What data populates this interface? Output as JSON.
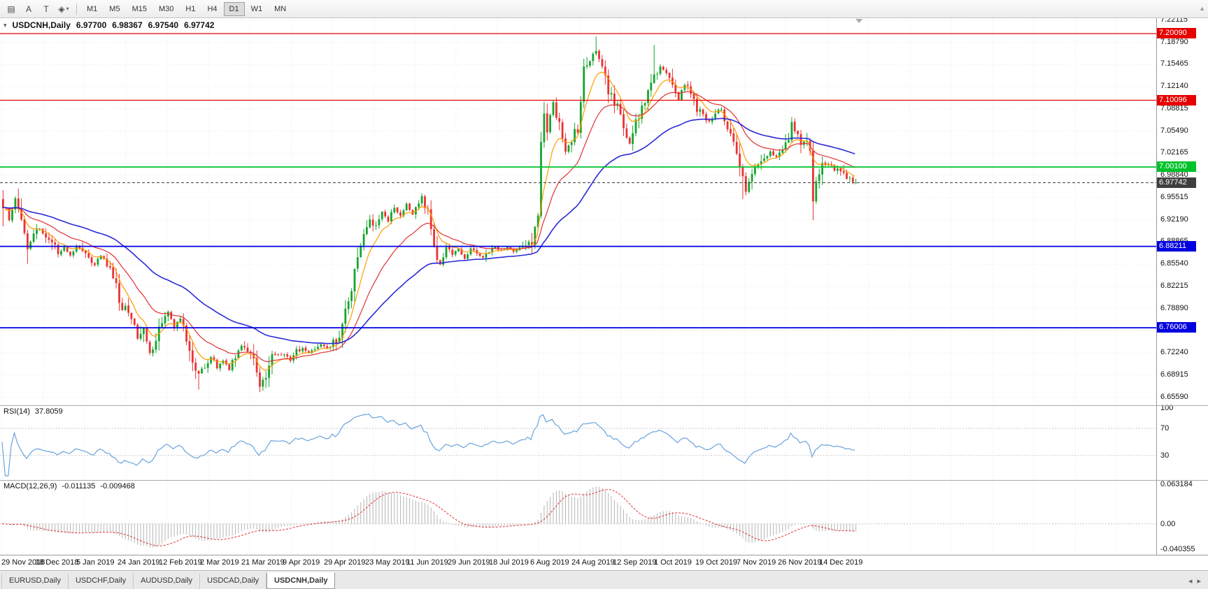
{
  "toolbar": {
    "icons": [
      {
        "name": "chart-list-icon",
        "glyph": "▤"
      },
      {
        "name": "cursor-tool-icon",
        "glyph": "A"
      },
      {
        "name": "text-tool-icon",
        "glyph": "T"
      },
      {
        "name": "shapes-tool-icon",
        "glyph": "◈"
      }
    ],
    "caret": "▾",
    "timeframes": [
      "M1",
      "M5",
      "M15",
      "M30",
      "H1",
      "H4",
      "D1",
      "W1",
      "MN"
    ],
    "active_timeframe": "D1",
    "scroll_marker": "▲"
  },
  "chart_header": {
    "dropdown_glyph": "▾",
    "symbol": "USDCNH,Daily",
    "open": "6.97700",
    "high": "6.98367",
    "low": "6.97540",
    "close": "6.97742"
  },
  "tabs": {
    "items": [
      "EURUSD,Daily",
      "USDCHF,Daily",
      "AUDUSD,Daily",
      "USDCAD,Daily",
      "USDCNH,Daily"
    ],
    "active_index": 4,
    "scroll_left": "◂",
    "scroll_right": "▸"
  },
  "chart_data": {
    "type": "candlestick",
    "symbol": "USDCNH",
    "timeframe": "Daily",
    "bars": 280,
    "price_range": [
      6.644,
      7.224
    ],
    "ohlc_current": {
      "open": 6.977,
      "high": 6.98367,
      "low": 6.9754,
      "close": 6.97742
    },
    "colors": {
      "up": "#16a52e",
      "down": "#ea3333",
      "grid": "#e7e7e7"
    },
    "price_axis_labels": [
      {
        "t": "7.22115",
        "v": 7.22115
      },
      {
        "t": "7.18790",
        "v": 7.1879
      },
      {
        "t": "7.15465",
        "v": 7.15465
      },
      {
        "t": "7.12140",
        "v": 7.1214
      },
      {
        "t": "7.08815",
        "v": 7.08815
      },
      {
        "t": "7.05490",
        "v": 7.0549
      },
      {
        "t": "7.02165",
        "v": 7.02165
      },
      {
        "t": "6.98840",
        "v": 6.9884
      },
      {
        "t": "6.95515",
        "v": 6.95515
      },
      {
        "t": "6.92190",
        "v": 6.9219
      },
      {
        "t": "6.88865",
        "v": 6.88865
      },
      {
        "t": "6.85540",
        "v": 6.8554
      },
      {
        "t": "6.82215",
        "v": 6.82215
      },
      {
        "t": "6.78890",
        "v": 6.7889
      },
      {
        "t": "6.75565",
        "v": 6.75565
      },
      {
        "t": "6.72240",
        "v": 6.7224
      },
      {
        "t": "6.68915",
        "v": 6.68915
      },
      {
        "t": "6.65590",
        "v": 6.6559
      }
    ],
    "date_labels": [
      "29 Nov 2018",
      "18 Dec 2018",
      "5 Jan 2019",
      "24 Jan 2019",
      "12 Feb 2019",
      "2 Mar 2019",
      "21 Mar 2019",
      "9 Apr 2019",
      "29 Apr 2019",
      "23 May 2019",
      "11 Jun 2019",
      "29 Jun 2019",
      "18 Jul 2019",
      "6 Aug 2019",
      "24 Aug 2019",
      "12 Sep 2019",
      "1 Oct 2019",
      "19 Oct 2019",
      "7 Nov 2019",
      "26 Nov 2019",
      "14 Dec 2019"
    ],
    "levels": [
      {
        "name": "resistance-line-1",
        "label": "7.20090",
        "value": 7.2009,
        "color": "#e60000",
        "width": 1.3,
        "dash": false
      },
      {
        "name": "resistance-line-2",
        "label": "7.10096",
        "value": 7.10096,
        "color": "#e60000",
        "width": 1.3,
        "dash": false
      },
      {
        "name": "support-line-green",
        "label": "7.00100",
        "value": 7.001,
        "color": "#00c32b",
        "width": 1.8,
        "dash": false
      },
      {
        "name": "current-price-line",
        "label": "6.97742",
        "value": 6.97742,
        "color": "#3f3f3f",
        "width": 1,
        "dash": true
      },
      {
        "name": "support-line-blue-1",
        "label": "6.88211",
        "value": 6.88211,
        "color": "#0000e0",
        "width": 1.8,
        "dash": false
      },
      {
        "name": "support-line-blue-2",
        "label": "6.76006",
        "value": 6.76006,
        "color": "#0000e0",
        "width": 1.8,
        "dash": false
      }
    ],
    "moving_averages": [
      {
        "name": "ma-fast-orange",
        "period": 8,
        "color": "#ff9c00",
        "width": 1.2
      },
      {
        "name": "ma-mid-red",
        "period": 21,
        "color": "#e03232",
        "width": 1.2
      },
      {
        "name": "ma-slow-blue",
        "period": 55,
        "color": "#2a2ad6",
        "width": 1.6
      }
    ],
    "close_anchors": [
      [
        0,
        6.946
      ],
      [
        2,
        6.924
      ],
      [
        4,
        6.951
      ],
      [
        6,
        6.93
      ],
      [
        8,
        6.879
      ],
      [
        10,
        6.897
      ],
      [
        12,
        6.909
      ],
      [
        14,
        6.899
      ],
      [
        16,
        6.886
      ],
      [
        18,
        6.873
      ],
      [
        20,
        6.88
      ],
      [
        22,
        6.867
      ],
      [
        24,
        6.883
      ],
      [
        26,
        6.873
      ],
      [
        28,
        6.863
      ],
      [
        30,
        6.854
      ],
      [
        32,
        6.869
      ],
      [
        34,
        6.857
      ],
      [
        36,
        6.843
      ],
      [
        38,
        6.801
      ],
      [
        40,
        6.789
      ],
      [
        42,
        6.777
      ],
      [
        44,
        6.743
      ],
      [
        46,
        6.757
      ],
      [
        48,
        6.723
      ],
      [
        50,
        6.739
      ],
      [
        52,
        6.773
      ],
      [
        54,
        6.781
      ],
      [
        56,
        6.761
      ],
      [
        58,
        6.771
      ],
      [
        60,
        6.746
      ],
      [
        62,
        6.713
      ],
      [
        64,
        6.691
      ],
      [
        66,
        6.704
      ],
      [
        68,
        6.717
      ],
      [
        70,
        6.701
      ],
      [
        72,
        6.711
      ],
      [
        74,
        6.697
      ],
      [
        76,
        6.721
      ],
      [
        78,
        6.732
      ],
      [
        80,
        6.727
      ],
      [
        82,
        6.709
      ],
      [
        84,
        6.673
      ],
      [
        86,
        6.691
      ],
      [
        88,
        6.714
      ],
      [
        90,
        6.721
      ],
      [
        92,
        6.718
      ],
      [
        94,
        6.711
      ],
      [
        96,
        6.723
      ],
      [
        98,
        6.731
      ],
      [
        100,
        6.721
      ],
      [
        102,
        6.727
      ],
      [
        104,
        6.735
      ],
      [
        106,
        6.729
      ],
      [
        108,
        6.738
      ],
      [
        110,
        6.749
      ],
      [
        112,
        6.789
      ],
      [
        114,
        6.821
      ],
      [
        116,
        6.863
      ],
      [
        118,
        6.899
      ],
      [
        120,
        6.921
      ],
      [
        122,
        6.913
      ],
      [
        124,
        6.935
      ],
      [
        126,
        6.921
      ],
      [
        128,
        6.941
      ],
      [
        130,
        6.929
      ],
      [
        132,
        6.945
      ],
      [
        134,
        6.931
      ],
      [
        136,
        6.949
      ],
      [
        137,
        6.957
      ],
      [
        139,
        6.929
      ],
      [
        141,
        6.881
      ],
      [
        143,
        6.855
      ],
      [
        145,
        6.881
      ],
      [
        147,
        6.869
      ],
      [
        149,
        6.879
      ],
      [
        151,
        6.863
      ],
      [
        153,
        6.877
      ],
      [
        155,
        6.873
      ],
      [
        157,
        6.867
      ],
      [
        159,
        6.875
      ],
      [
        161,
        6.881
      ],
      [
        163,
        6.875
      ],
      [
        165,
        6.881
      ],
      [
        167,
        6.875
      ],
      [
        169,
        6.879
      ],
      [
        171,
        6.883
      ],
      [
        173,
        6.889
      ],
      [
        175,
        6.931
      ],
      [
        176,
        7.042
      ],
      [
        177,
        7.077
      ],
      [
        178,
        7.059
      ],
      [
        180,
        7.097
      ],
      [
        182,
        7.061
      ],
      [
        184,
        7.023
      ],
      [
        186,
        7.043
      ],
      [
        188,
        7.059
      ],
      [
        190,
        7.147
      ],
      [
        192,
        7.161
      ],
      [
        194,
        7.179
      ],
      [
        195,
        7.161
      ],
      [
        197,
        7.131
      ],
      [
        199,
        7.107
      ],
      [
        201,
        7.089
      ],
      [
        203,
        7.061
      ],
      [
        205,
        7.037
      ],
      [
        207,
        7.067
      ],
      [
        209,
        7.091
      ],
      [
        211,
        7.119
      ],
      [
        213,
        7.133
      ],
      [
        215,
        7.149
      ],
      [
        217,
        7.143
      ],
      [
        219,
        7.133
      ],
      [
        221,
        7.103
      ],
      [
        223,
        7.127
      ],
      [
        225,
        7.109
      ],
      [
        227,
        7.091
      ],
      [
        229,
        7.077
      ],
      [
        231,
        7.069
      ],
      [
        233,
        7.083
      ],
      [
        235,
        7.089
      ],
      [
        237,
        7.063
      ],
      [
        239,
        7.037
      ],
      [
        241,
        6.997
      ],
      [
        243,
        6.963
      ],
      [
        245,
        6.989
      ],
      [
        247,
        7.003
      ],
      [
        249,
        7.013
      ],
      [
        251,
        7.023
      ],
      [
        253,
        7.017
      ],
      [
        255,
        7.029
      ],
      [
        257,
        7.037
      ],
      [
        258,
        7.067
      ],
      [
        260,
        7.045
      ],
      [
        262,
        7.037
      ],
      [
        264,
        7.031
      ],
      [
        265,
        6.951
      ],
      [
        266,
        6.975
      ],
      [
        268,
        7.001
      ],
      [
        270,
        7.005
      ],
      [
        272,
        6.997
      ],
      [
        274,
        6.999
      ],
      [
        276,
        6.985
      ],
      [
        278,
        6.979
      ],
      [
        279,
        6.9774
      ]
    ],
    "spikes": [
      {
        "i": 0,
        "h": 6.966,
        "l": 6.912
      },
      {
        "i": 8,
        "l": 6.856
      },
      {
        "i": 64,
        "l": 6.6674
      },
      {
        "i": 85,
        "l": 6.6656
      },
      {
        "i": 137,
        "h": 6.9616
      },
      {
        "i": 176,
        "l": 6.924
      },
      {
        "i": 177,
        "h": 7.0985
      },
      {
        "i": 194,
        "h": 7.1965
      },
      {
        "i": 213,
        "h": 7.184
      },
      {
        "i": 242,
        "l": 6.953
      },
      {
        "i": 258,
        "h": 7.076
      },
      {
        "i": 265,
        "l": 6.9212
      }
    ],
    "rsi": {
      "label": "RSI(14)",
      "value": "37.8059",
      "period": 14,
      "color": "#69a3dc",
      "levels": [
        30,
        70
      ],
      "range": [
        0,
        100
      ],
      "axis_labels": [
        {
          "t": "100",
          "v": 100
        },
        {
          "t": "70",
          "v": 70
        },
        {
          "t": "30",
          "v": 30
        }
      ]
    },
    "macd": {
      "label": "MACD(12,26,9)",
      "value_macd": "-0.011135",
      "value_signal": "-0.009468",
      "fast": 12,
      "slow": 26,
      "signal": 9,
      "hist_color": "#b5b5b5",
      "signal_color": "#e03232",
      "range": [
        -0.040355,
        0.063184
      ],
      "axis_labels": [
        {
          "t": "0.063184",
          "v": 0.063184
        },
        {
          "t": "0.00",
          "v": 0
        },
        {
          "t": "-0.040355",
          "v": -0.040355
        }
      ]
    }
  }
}
